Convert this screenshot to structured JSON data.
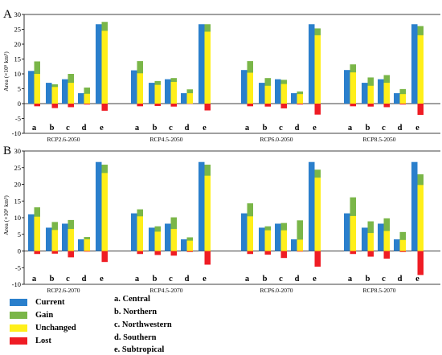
{
  "chart_data": [
    {
      "type": "bar",
      "panel_label": "A",
      "ylabel": "Area (×10⁵ km²)",
      "ylim": [
        -10,
        30
      ],
      "yticks": [
        -10,
        -5,
        0,
        5,
        10,
        15,
        20,
        25,
        30
      ],
      "categories": [
        "a",
        "b",
        "c",
        "d",
        "e"
      ],
      "groups": [
        {
          "label": "RCP2.6-2050",
          "current": [
            11.0,
            7.0,
            8.2,
            3.5,
            26.7
          ],
          "gain": [
            14.2,
            6.5,
            10.0,
            5.4,
            27.5
          ],
          "unchanged": [
            10.0,
            5.6,
            7.0,
            3.3,
            24.5
          ],
          "lost": [
            -0.9,
            -1.5,
            -1.2,
            -0.3,
            -2.4
          ]
        },
        {
          "label": "RCP4.5-2050",
          "current": [
            11.2,
            7.0,
            8.2,
            3.5,
            26.7
          ],
          "gain": [
            14.3,
            7.6,
            8.6,
            4.8,
            26.7
          ],
          "unchanged": [
            10.2,
            6.3,
            7.3,
            3.5,
            24.2
          ],
          "lost": [
            -0.9,
            -0.8,
            -1.0,
            -0.1,
            -2.3
          ]
        },
        {
          "label": "RCP6.0-2050",
          "current": [
            11.3,
            7.0,
            8.2,
            3.5,
            26.7
          ],
          "gain": [
            14.3,
            8.6,
            8.0,
            4.1,
            25.3
          ],
          "unchanged": [
            10.4,
            6.0,
            6.6,
            3.2,
            23.0
          ],
          "lost": [
            -0.9,
            -1.0,
            -1.6,
            -0.3,
            -3.7
          ]
        },
        {
          "label": "RCP8.5-2050",
          "current": [
            11.3,
            7.0,
            8.2,
            3.5,
            26.7
          ],
          "gain": [
            13.2,
            8.8,
            9.6,
            4.9,
            26.1
          ],
          "unchanged": [
            10.5,
            6.0,
            7.0,
            3.2,
            23.0
          ],
          "lost": [
            -0.9,
            -1.0,
            -1.2,
            -0.3,
            -3.8
          ]
        }
      ]
    },
    {
      "type": "bar",
      "panel_label": "B",
      "ylabel": "Area (×10⁵ km²)",
      "ylim": [
        -10,
        30
      ],
      "yticks": [
        -10,
        -5,
        0,
        5,
        10,
        15,
        20,
        25,
        30
      ],
      "categories": [
        "a",
        "b",
        "c",
        "d",
        "e"
      ],
      "groups": [
        {
          "label": "RCP2.6-2070",
          "current": [
            11.0,
            7.0,
            8.2,
            3.5,
            26.7
          ],
          "gain": [
            13.1,
            8.7,
            9.3,
            4.2,
            25.9
          ],
          "unchanged": [
            10.3,
            6.3,
            6.6,
            3.5,
            23.4
          ],
          "lost": [
            -0.9,
            -0.8,
            -1.9,
            -0.2,
            -3.3
          ]
        },
        {
          "label": "RCP4.5-2070",
          "current": [
            11.3,
            7.0,
            8.2,
            3.5,
            26.7
          ],
          "gain": [
            12.5,
            7.4,
            10.1,
            4.1,
            25.9
          ],
          "unchanged": [
            10.4,
            5.8,
            6.6,
            3.1,
            22.6
          ],
          "lost": [
            -0.9,
            -1.2,
            -1.4,
            -0.3,
            -4.1
          ]
        },
        {
          "label": "RCP6.0-2070",
          "current": [
            11.3,
            7.0,
            8.2,
            3.5,
            26.7
          ],
          "gain": [
            14.3,
            7.4,
            8.4,
            9.2,
            24.4
          ],
          "unchanged": [
            10.4,
            6.2,
            6.2,
            3.4,
            22.0
          ],
          "lost": [
            -0.9,
            -1.1,
            -2.1,
            -0.2,
            -4.7
          ]
        },
        {
          "label": "RCP8.5-2070",
          "current": [
            11.3,
            7.0,
            8.2,
            3.5,
            26.7
          ],
          "gain": [
            16.1,
            8.9,
            9.8,
            5.7,
            23.0
          ],
          "unchanged": [
            10.5,
            5.4,
            6.0,
            3.3,
            19.8
          ],
          "lost": [
            -0.9,
            -1.7,
            -2.3,
            -0.3,
            -7.2
          ]
        }
      ]
    }
  ],
  "legend": {
    "series": [
      {
        "key": "current",
        "label": "Current",
        "color": "#2a7fcc"
      },
      {
        "key": "gain",
        "label": "Gain",
        "color": "#7ab648"
      },
      {
        "key": "unchanged",
        "label": "Unchanged",
        "color": "#ffef1a"
      },
      {
        "key": "lost",
        "label": "Lost",
        "color": "#ef1c24"
      }
    ],
    "regions": [
      "a. Central",
      "b. Northern",
      "c. Northwestern",
      "d. Southern",
      "e. Subtropical"
    ]
  }
}
